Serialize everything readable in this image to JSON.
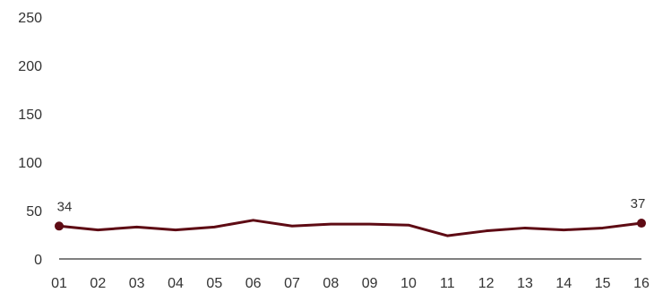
{
  "chart_data": {
    "type": "line",
    "title": "",
    "xlabel": "",
    "ylabel": "",
    "categories": [
      "01",
      "02",
      "03",
      "04",
      "05",
      "06",
      "07",
      "08",
      "09",
      "10",
      "11",
      "12",
      "13",
      "14",
      "15",
      "16"
    ],
    "series": [
      {
        "values": [
          34,
          30,
          33,
          30,
          33,
          40,
          34,
          36,
          36,
          35,
          24,
          29,
          32,
          30,
          32,
          37
        ],
        "color": "#5e0b14"
      }
    ],
    "ylim": [
      0,
      250
    ],
    "y_ticks": [
      0,
      50,
      100,
      150,
      200,
      250
    ],
    "data_labels": [
      {
        "index": 0,
        "text": "34"
      },
      {
        "index": 15,
        "text": "37"
      }
    ],
    "grid": false,
    "legend": "none",
    "axis_color": "#333333"
  }
}
